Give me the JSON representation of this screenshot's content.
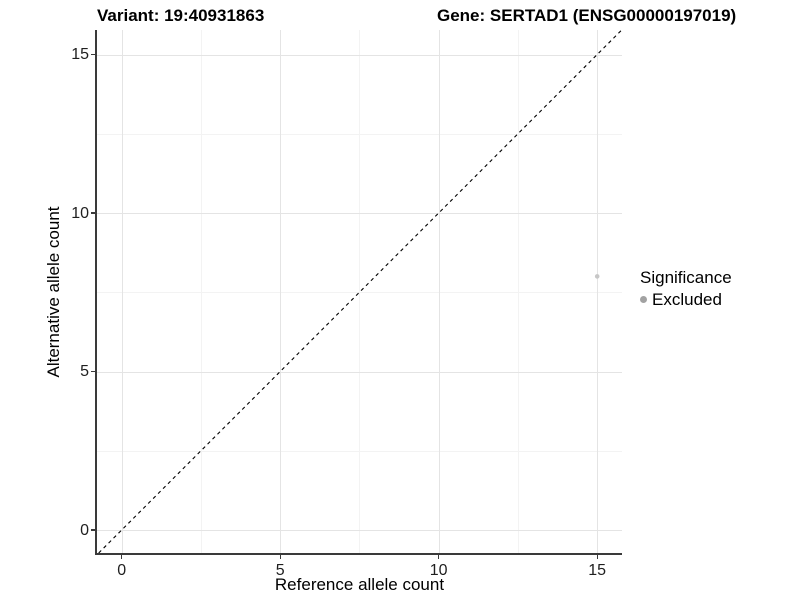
{
  "chart_data": {
    "type": "scatter",
    "title_left": "Variant: 19:40931863",
    "title_right": "Gene: SERTAD1 (ENSG00000197019)",
    "xlabel": "Reference allele count",
    "ylabel": "Alternative allele count",
    "x_ticks": [
      0,
      5,
      10,
      15
    ],
    "y_ticks": [
      0,
      5,
      10,
      15
    ],
    "xlim": [
      -0.78,
      15.78
    ],
    "ylim": [
      -0.73,
      15.77
    ],
    "grid": "major and minor gridlines, light gray on white panel",
    "axis_color": "#3a3a3a",
    "grid_major_color": "#e4e4e4",
    "grid_minor_color": "#f3f3f3",
    "reference_line": {
      "type": "identity",
      "equation": "y = x",
      "style": "dashed",
      "color": "#000000"
    },
    "series": [
      {
        "name": "Excluded",
        "color": "#c7c7c7",
        "points": [
          {
            "x": 15,
            "y": 8
          }
        ]
      }
    ],
    "legend": {
      "title": "Significance",
      "position": "right",
      "entries": [
        {
          "label": "Excluded",
          "marker_color": "#a2a2a2"
        }
      ]
    }
  }
}
